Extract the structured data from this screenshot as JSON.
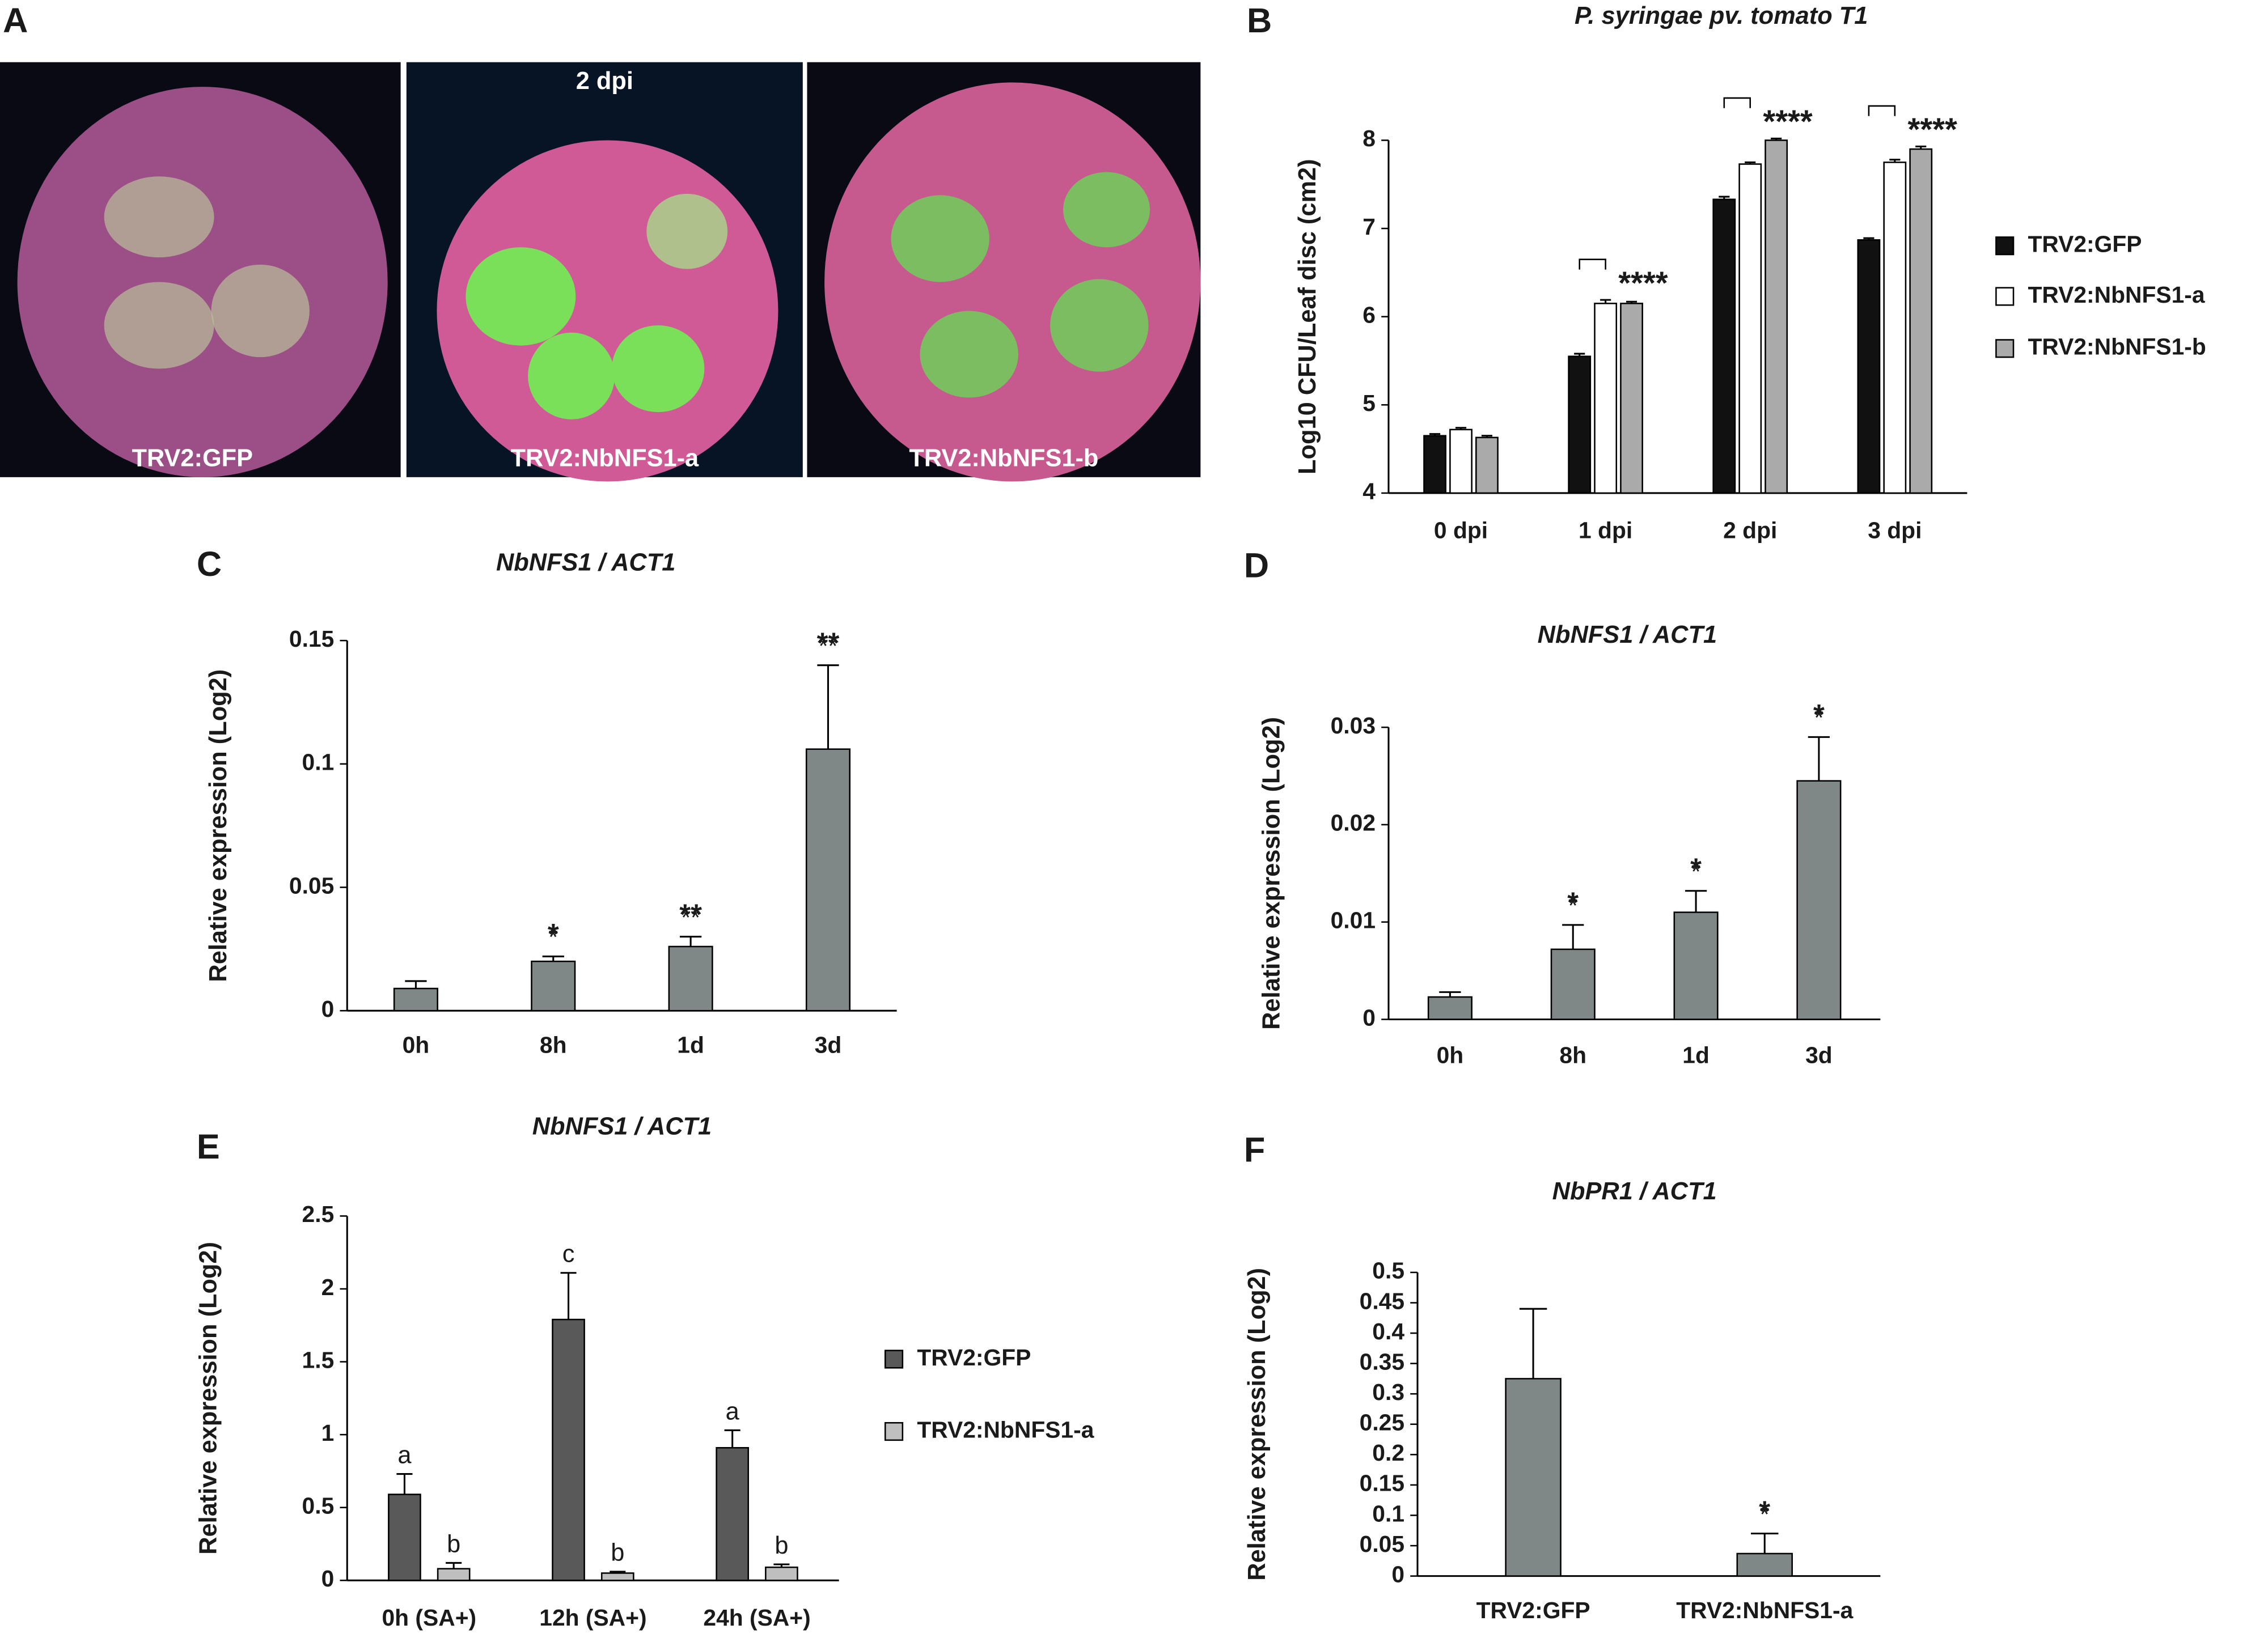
{
  "panel_labels": [
    "A",
    "B",
    "C",
    "D",
    "E",
    "F"
  ],
  "photo_panel": {
    "time": "2 dpi",
    "images": [
      "TRV2:GFP",
      "TRV2:NbNFS1-a",
      "TRV2:NbNFS1-b"
    ]
  },
  "chart_data": [
    {
      "type": "grouped-bar",
      "title": "P. syringae pv. tomato T1",
      "y_label": "Log10 CFU/Leaf disc (cm2)",
      "categories": [
        "0 dpi",
        "1 dpi",
        "2 dpi",
        "3 dpi"
      ],
      "series": [
        {
          "name": "TRV2:GFP",
          "color": "#111111",
          "values": [
            4.65,
            5.55,
            7.33,
            6.87
          ],
          "errors": [
            0.02,
            0.03,
            0.03,
            0.02
          ]
        },
        {
          "name": "TRV2:NbNFS1-a",
          "color": "#ffffff",
          "values": [
            4.72,
            6.15,
            7.73,
            7.75
          ],
          "errors": [
            0.02,
            0.04,
            0.02,
            0.03
          ]
        },
        {
          "name": "TRV2:NbNFS1-b",
          "color": "#aaaaaa",
          "values": [
            4.63,
            6.15,
            8.0,
            7.9
          ],
          "errors": [
            0.02,
            0.02,
            0.02,
            0.03
          ]
        }
      ],
      "annotations": [
        null,
        "****",
        "****",
        "****"
      ],
      "ylim": [
        4,
        8
      ],
      "yticks": [
        4,
        5,
        6,
        7,
        8
      ]
    },
    {
      "type": "bar",
      "title": "NbNFS1 / ACT1",
      "y_label": "Relative expression (Log2)",
      "categories": [
        "0h",
        "8h",
        "1d",
        "3d"
      ],
      "color": "#7f8886",
      "values": [
        0.009,
        0.02,
        0.026,
        0.106
      ],
      "errors": [
        0.003,
        0.002,
        0.004,
        0.034
      ],
      "annotations": [
        null,
        "*",
        "**",
        "**"
      ],
      "ylim": [
        0,
        0.15
      ],
      "yticks": [
        0,
        0.05,
        0.1,
        0.15
      ]
    },
    {
      "type": "bar",
      "title": "NbNFS1 / ACT1",
      "y_label": "Relative expression (Log2)",
      "categories": [
        "0h",
        "8h",
        "1d",
        "3d"
      ],
      "color": "#7f8886",
      "values": [
        0.0023,
        0.0072,
        0.011,
        0.0245
      ],
      "errors": [
        0.0005,
        0.0025,
        0.0022,
        0.0045
      ],
      "annotations": [
        null,
        "*",
        "*",
        "*"
      ],
      "ylim": [
        0,
        0.03
      ],
      "yticks": [
        0,
        0.01,
        0.02,
        0.03
      ]
    },
    {
      "type": "grouped-bar",
      "title": "NbNFS1 / ACT1",
      "y_label": "Relative expression (Log2)",
      "categories": [
        "0h (SA+)",
        "12h (SA+)",
        "24h (SA+)"
      ],
      "series": [
        {
          "name": "TRV2:GFP",
          "color": "#595959",
          "values": [
            0.59,
            1.79,
            0.91
          ],
          "errors": [
            0.14,
            0.32,
            0.12
          ],
          "annotations": [
            "a",
            "c",
            "a"
          ]
        },
        {
          "name": "TRV2:NbNFS1-a",
          "color": "#bfbfbf",
          "values": [
            0.08,
            0.05,
            0.09
          ],
          "errors": [
            0.04,
            0.01,
            0.02
          ],
          "annotations": [
            "b",
            "b",
            "b"
          ]
        }
      ],
      "ylim": [
        0,
        2.5
      ],
      "yticks": [
        0,
        0.5,
        1,
        1.5,
        2,
        2.5
      ]
    },
    {
      "type": "bar",
      "title": "NbPR1 / ACT1",
      "y_label": "Relative expression (Log2)",
      "categories": [
        "TRV2:GFP",
        "TRV2:NbNFS1-a"
      ],
      "color": "#7f8886",
      "values": [
        0.325,
        0.037
      ],
      "errors": [
        0.115,
        0.033
      ],
      "annotations": [
        null,
        "*"
      ],
      "ylim": [
        0,
        0.5
      ],
      "yticks": [
        0,
        0.05,
        0.1,
        0.15,
        0.2,
        0.25,
        0.3,
        0.35,
        0.4,
        0.45,
        0.5
      ]
    }
  ]
}
